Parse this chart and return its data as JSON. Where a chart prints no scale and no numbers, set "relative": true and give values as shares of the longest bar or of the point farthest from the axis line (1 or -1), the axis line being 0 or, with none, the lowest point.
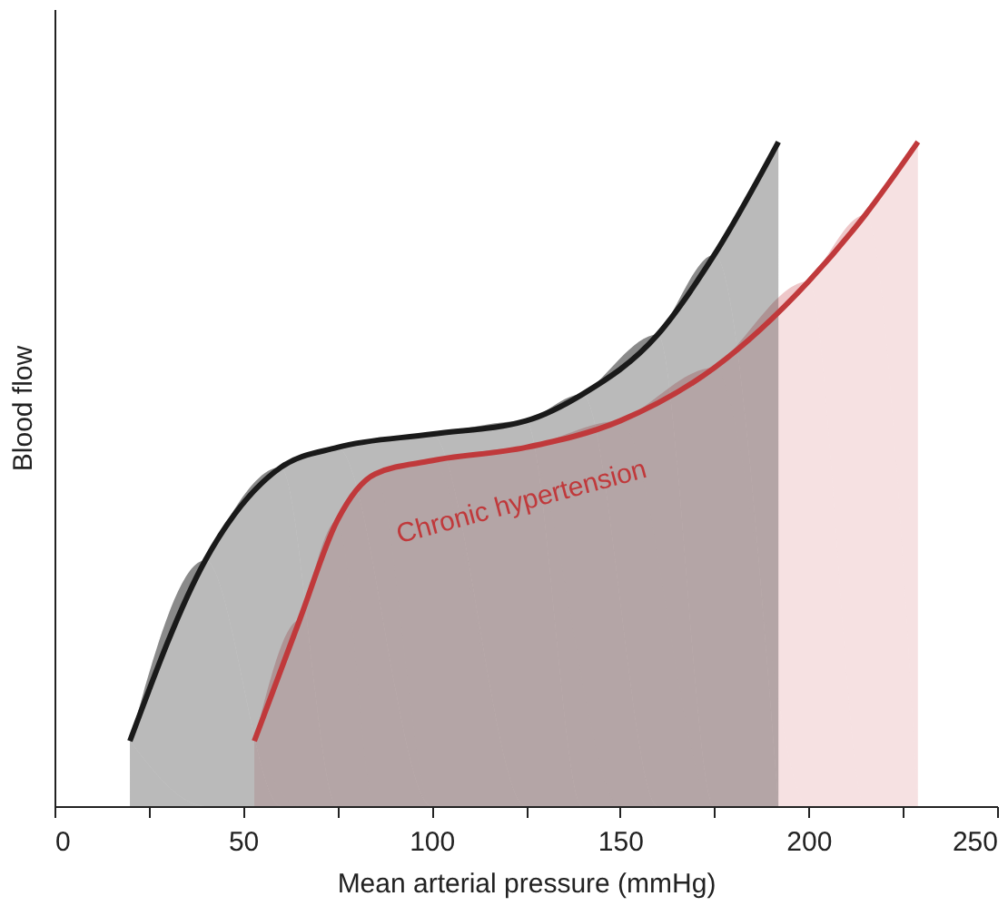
{
  "chart_data": {
    "type": "area",
    "relative": true,
    "xlabel": "Mean arterial pressure (mmHg)",
    "ylabel": "Blood flow",
    "xlim": [
      0,
      250
    ],
    "xticks": [
      0,
      {
        "value": 25,
        "label": null
      },
      50,
      {
        "value": 75,
        "label": null
      },
      100,
      {
        "value": 125,
        "label": null
      },
      150,
      {
        "value": 175,
        "label": null
      },
      200,
      {
        "value": 225,
        "label": null
      },
      250
    ],
    "grid": false,
    "line_style": "solid",
    "marker": "none",
    "series": [
      {
        "name": "Chronic hypertension",
        "color": "#c0393b",
        "x": [
          53,
          65,
          75,
          85,
          100,
          125,
          150,
          175,
          200,
          215,
          229
        ],
        "values": [
          0.098,
          0.28,
          0.43,
          0.5,
          0.52,
          0.54,
          0.58,
          0.66,
          0.79,
          0.89,
          1.0
        ]
      },
      {
        "color": "#1a1a1a",
        "x": [
          20,
          40,
          60,
          75,
          100,
          125,
          140,
          160,
          175,
          192
        ],
        "values": [
          0.098,
          0.37,
          0.51,
          0.54,
          0.56,
          0.58,
          0.62,
          0.71,
          0.83,
          1.0
        ]
      }
    ]
  }
}
